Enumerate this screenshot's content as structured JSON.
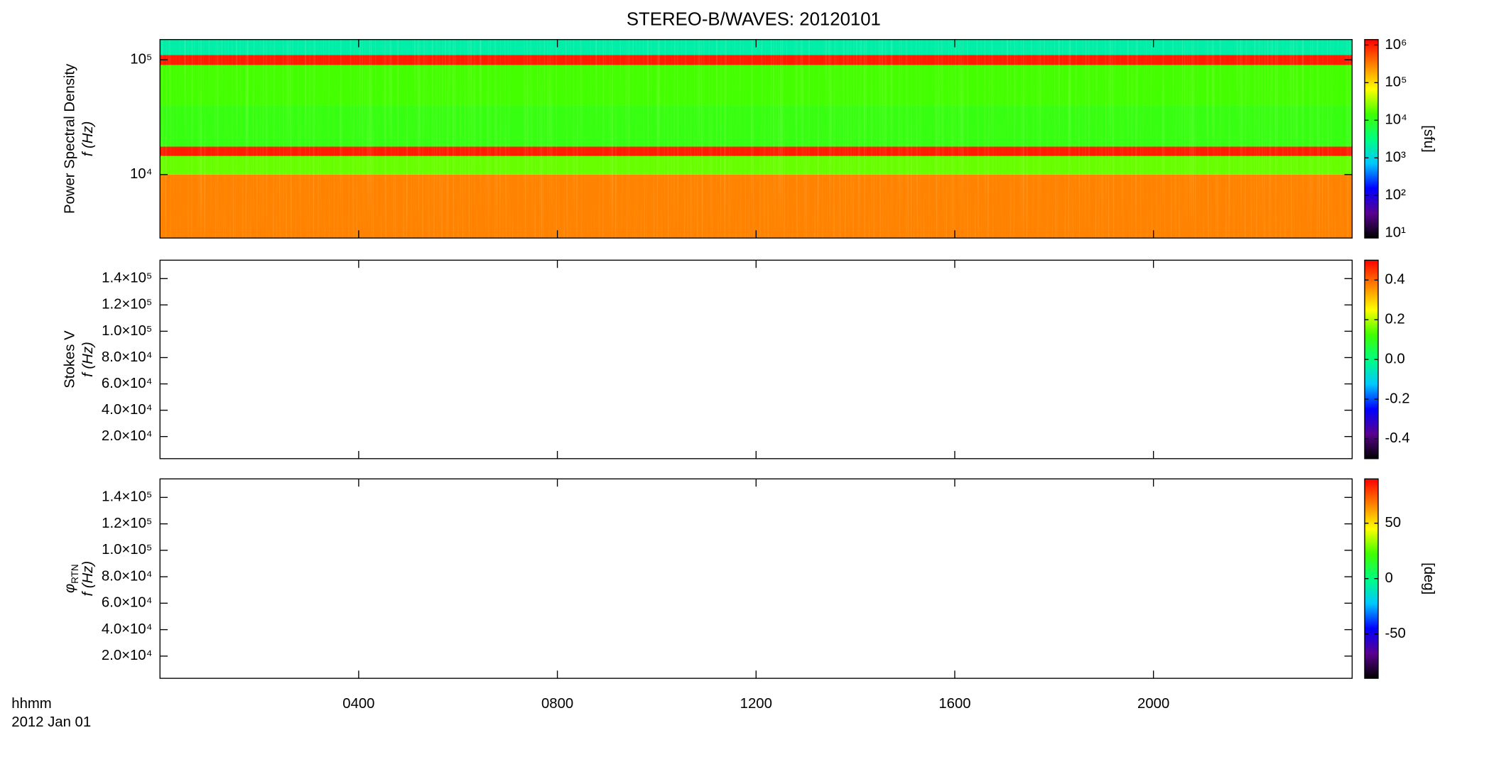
{
  "title": "STEREO-B/WAVES: 20120101",
  "time_axis": {
    "title": [
      "hhmm",
      "2012 Jan 01"
    ],
    "xlim": [
      0,
      24
    ],
    "xticks": [
      {
        "value": 4,
        "label": "0400"
      },
      {
        "value": 8,
        "label": "0800"
      },
      {
        "value": 12,
        "label": "1200"
      },
      {
        "value": 16,
        "label": "1600"
      },
      {
        "value": 20,
        "label": "2000"
      }
    ]
  },
  "colormap": [
    "#000000",
    "#5a0090",
    "#0000ff",
    "#00c8ff",
    "#00ff80",
    "#40ff00",
    "#ffff00",
    "#ff8000",
    "#ff0000"
  ],
  "chart_data": [
    {
      "type": "heatmap",
      "ylabel": [
        "Power Spectral Density",
        "f (Hz)"
      ],
      "ylog": true,
      "ylim": [
        2800,
        150000
      ],
      "yticks": [
        {
          "value": 10000,
          "label": "10⁴"
        },
        {
          "value": 100000,
          "label": "10⁵"
        }
      ],
      "y_bins": [
        2800,
        10000,
        14500,
        17500,
        40000,
        90000,
        110000,
        150000
      ],
      "values": [
        300000,
        20000,
        1000000,
        12000,
        15000,
        1000000,
        2000
      ],
      "colorbar": {
        "label": "[sfu]",
        "log": true,
        "clim": [
          7.4,
          1400000
        ],
        "ticks": [
          {
            "value": 10,
            "label": "10¹"
          },
          {
            "value": 100,
            "label": "10²"
          },
          {
            "value": 1000,
            "label": "10³"
          },
          {
            "value": 10000,
            "label": "10⁴"
          },
          {
            "value": 100000,
            "label": "10⁵"
          },
          {
            "value": 1000000,
            "label": "10⁶"
          }
        ]
      }
    },
    {
      "type": "heatmap",
      "ylabel": [
        "Stokes V",
        "f (Hz)"
      ],
      "ylog": false,
      "ylim": [
        3200,
        154000
      ],
      "yticks": [
        {
          "value": 20000,
          "label": "2.0×10⁴"
        },
        {
          "value": 40000,
          "label": "4.0×10⁴"
        },
        {
          "value": 60000,
          "label": "6.0×10⁴"
        },
        {
          "value": 80000,
          "label": "8.0×10⁴"
        },
        {
          "value": 100000,
          "label": "1.0×10⁵"
        },
        {
          "value": 120000,
          "label": "1.2×10⁵"
        },
        {
          "value": 140000,
          "label": "1.4×10⁵"
        }
      ],
      "colorbar": {
        "log": false,
        "clim": [
          -0.5,
          0.5
        ],
        "ticks": [
          -0.4,
          -0.2,
          {
            "value": 0,
            "label": "0.0"
          },
          0.2,
          0.4
        ]
      }
    },
    {
      "type": "heatmap",
      "ylabel": [
        "φ",
        "f (Hz)"
      ],
      "ylabel_subscript": "RTN",
      "ylog": false,
      "ylim": [
        3200,
        154000
      ],
      "yticks": [
        {
          "value": 20000,
          "label": "2.0×10⁴"
        },
        {
          "value": 40000,
          "label": "4.0×10⁴"
        },
        {
          "value": 60000,
          "label": "6.0×10⁴"
        },
        {
          "value": 80000,
          "label": "8.0×10⁴"
        },
        {
          "value": 100000,
          "label": "1.0×10⁵"
        },
        {
          "value": 120000,
          "label": "1.2×10⁵"
        },
        {
          "value": 140000,
          "label": "1.4×10⁵"
        }
      ],
      "colorbar": {
        "label": "[deg]",
        "log": false,
        "clim": [
          -90,
          90
        ],
        "ticks": [
          -50,
          0,
          50
        ]
      }
    }
  ]
}
